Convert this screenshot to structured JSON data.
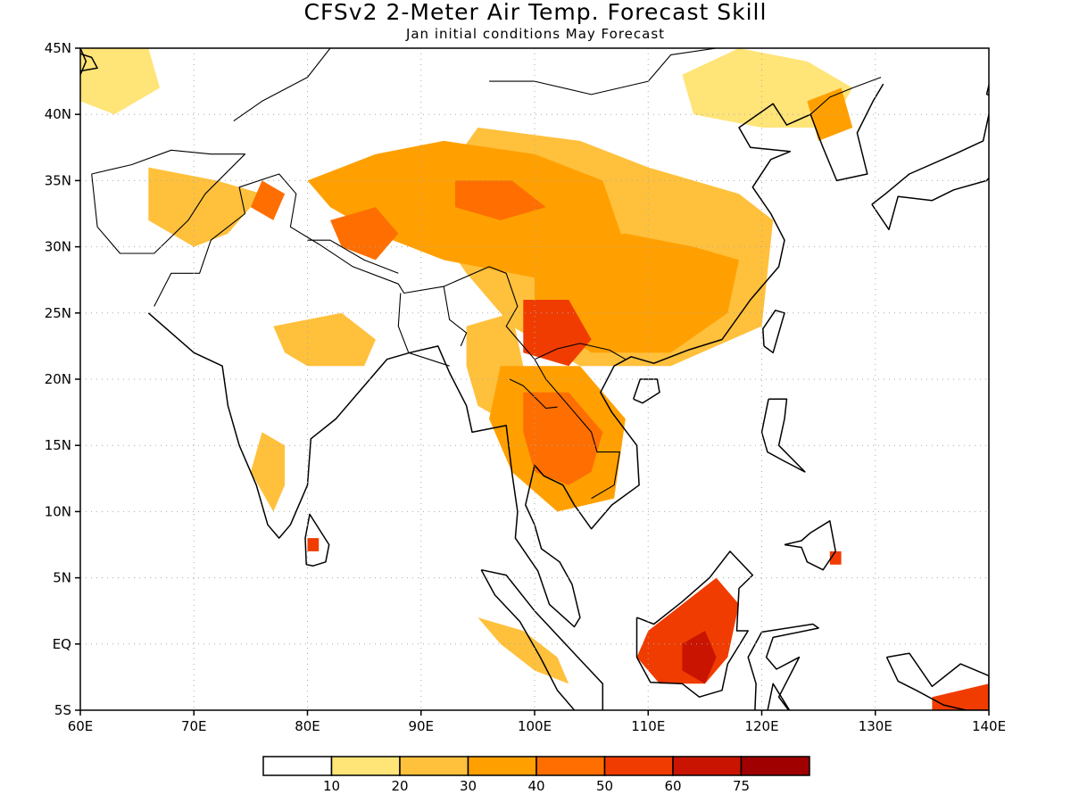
{
  "title": "CFSv2 2-Meter Air Temp. Forecast Skill",
  "subtitle": "Jan initial conditions   May Forecast",
  "x_ticks": [
    "60E",
    "70E",
    "80E",
    "90E",
    "100E",
    "110E",
    "120E",
    "130E",
    "140E"
  ],
  "y_ticks": [
    "45N",
    "40N",
    "35N",
    "30N",
    "25N",
    "20N",
    "15N",
    "10N",
    "5N",
    "EQ",
    "5S"
  ],
  "colorbar": {
    "colors": [
      "#ffffff",
      "#ffe478",
      "#ffc03c",
      "#ffa000",
      "#ff6e00",
      "#f03c00",
      "#c81400",
      "#a00000"
    ],
    "labels": [
      "10",
      "20",
      "30",
      "40",
      "50",
      "60",
      "75"
    ]
  },
  "map_extent": {
    "lon": [
      60,
      140
    ],
    "lat": [
      -5,
      45
    ]
  },
  "skill_regions": [
    {
      "name": "tibet-plateau",
      "level": 3,
      "pts": [
        [
          86,
          37
        ],
        [
          92,
          38
        ],
        [
          100,
          37
        ],
        [
          106,
          35
        ],
        [
          108,
          30
        ],
        [
          104,
          27
        ],
        [
          98,
          28
        ],
        [
          92,
          29
        ],
        [
          86,
          31
        ],
        [
          82,
          33
        ],
        [
          80,
          35
        ]
      ]
    },
    {
      "name": "tibet-core",
      "level": 4,
      "pts": [
        [
          82,
          32
        ],
        [
          86,
          33
        ],
        [
          88,
          31
        ],
        [
          86,
          29
        ],
        [
          83,
          30
        ]
      ]
    },
    {
      "name": "tibet-core-2",
      "level": 4,
      "pts": [
        [
          93,
          35
        ],
        [
          98,
          35
        ],
        [
          101,
          33
        ],
        [
          97,
          32
        ],
        [
          93,
          33
        ]
      ]
    },
    {
      "name": "central-china",
      "level": 3,
      "pts": [
        [
          100,
          30
        ],
        [
          108,
          31
        ],
        [
          114,
          30
        ],
        [
          118,
          29
        ],
        [
          117,
          25
        ],
        [
          112,
          22
        ],
        [
          105,
          22
        ],
        [
          100,
          25
        ]
      ]
    },
    {
      "name": "china-outer",
      "level": 2,
      "pts": [
        [
          95,
          39
        ],
        [
          104,
          38
        ],
        [
          110,
          36
        ],
        [
          118,
          34
        ],
        [
          121,
          32
        ],
        [
          120,
          24
        ],
        [
          112,
          21
        ],
        [
          104,
          21
        ],
        [
          98,
          24
        ],
        [
          94,
          28
        ],
        [
          90,
          33
        ]
      ]
    },
    {
      "name": "yunnan-core",
      "level": 5,
      "pts": [
        [
          99,
          26
        ],
        [
          103,
          26
        ],
        [
          105,
          23
        ],
        [
          103,
          21
        ],
        [
          99,
          22
        ]
      ]
    },
    {
      "name": "indochina",
      "level": 4,
      "pts": [
        [
          99,
          19
        ],
        [
          103,
          19
        ],
        [
          106,
          16
        ],
        [
          105,
          13
        ],
        [
          103,
          12
        ],
        [
          100,
          13
        ],
        [
          99,
          16
        ]
      ]
    },
    {
      "name": "indochina-outer",
      "level": 3,
      "pts": [
        [
          97,
          21
        ],
        [
          104,
          21
        ],
        [
          108,
          17
        ],
        [
          107,
          11
        ],
        [
          102,
          10
        ],
        [
          98,
          13
        ],
        [
          96,
          17
        ]
      ]
    },
    {
      "name": "northeast-china",
      "level": 1,
      "pts": [
        [
          113,
          43
        ],
        [
          118,
          45
        ],
        [
          124,
          44
        ],
        [
          128,
          42
        ],
        [
          126,
          39
        ],
        [
          120,
          39
        ],
        [
          114,
          40
        ]
      ]
    },
    {
      "name": "north-korea",
      "level": 3,
      "pts": [
        [
          124,
          41
        ],
        [
          127,
          42
        ],
        [
          128,
          39
        ],
        [
          125,
          38
        ]
      ]
    },
    {
      "name": "burma",
      "level": 2,
      "pts": [
        [
          94,
          24
        ],
        [
          98,
          25
        ],
        [
          99,
          21
        ],
        [
          97,
          17
        ],
        [
          95,
          18
        ],
        [
          94,
          21
        ]
      ]
    },
    {
      "name": "india-ganges",
      "level": 2,
      "pts": [
        [
          77,
          24
        ],
        [
          83,
          25
        ],
        [
          86,
          23
        ],
        [
          85,
          21
        ],
        [
          80,
          21
        ],
        [
          78,
          22
        ]
      ]
    },
    {
      "name": "pakistan",
      "level": 2,
      "pts": [
        [
          66,
          36
        ],
        [
          72,
          35
        ],
        [
          76,
          34
        ],
        [
          73,
          31
        ],
        [
          70,
          30
        ],
        [
          66,
          32
        ]
      ]
    },
    {
      "name": "kashmir",
      "level": 4,
      "pts": [
        [
          76,
          35
        ],
        [
          78,
          34
        ],
        [
          77,
          32
        ],
        [
          75,
          33
        ]
      ]
    },
    {
      "name": "ghats",
      "level": 2,
      "pts": [
        [
          76,
          16
        ],
        [
          78,
          15
        ],
        [
          78,
          12
        ],
        [
          77,
          10
        ],
        [
          75,
          13
        ]
      ]
    },
    {
      "name": "borneo",
      "level": 5,
      "pts": [
        [
          110,
          1
        ],
        [
          113,
          3
        ],
        [
          116,
          5
        ],
        [
          118,
          3
        ],
        [
          117,
          -1
        ],
        [
          115,
          -3
        ],
        [
          111,
          -3
        ],
        [
          109,
          -1
        ]
      ]
    },
    {
      "name": "borneo-core",
      "level": 6,
      "pts": [
        [
          113,
          0
        ],
        [
          115,
          1
        ],
        [
          116,
          -1
        ],
        [
          115,
          -3
        ],
        [
          113,
          -2
        ]
      ]
    },
    {
      "name": "sumatra",
      "level": 2,
      "pts": [
        [
          95,
          2
        ],
        [
          99,
          1
        ],
        [
          102,
          -1
        ],
        [
          103,
          -3
        ],
        [
          100,
          -2
        ],
        [
          97,
          0
        ]
      ]
    },
    {
      "name": "new-guinea",
      "level": 5,
      "pts": [
        [
          135,
          -4
        ],
        [
          140,
          -3
        ],
        [
          140,
          -5
        ],
        [
          135,
          -5
        ]
      ]
    },
    {
      "name": "sri-lanka",
      "level": 5,
      "pts": [
        [
          80,
          8
        ],
        [
          81,
          8
        ],
        [
          81,
          7
        ],
        [
          80,
          7
        ]
      ]
    },
    {
      "name": "mindanao",
      "level": 5,
      "pts": [
        [
          126,
          7
        ],
        [
          127,
          7
        ],
        [
          127,
          6
        ],
        [
          126,
          6
        ]
      ]
    },
    {
      "name": "kazakh-north",
      "level": 1,
      "pts": [
        [
          60,
          45
        ],
        [
          66,
          45
        ],
        [
          67,
          42
        ],
        [
          63,
          40
        ],
        [
          60,
          41
        ]
      ]
    }
  ]
}
